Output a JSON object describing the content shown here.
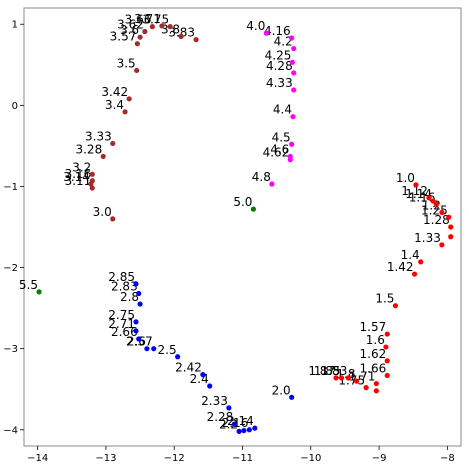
{
  "chart_data": {
    "type": "scatter",
    "title": "",
    "xlabel": "",
    "ylabel": "",
    "xlim": [
      -14.2,
      -7.8
    ],
    "ylim": [
      -4.2,
      1.2
    ],
    "grid": false,
    "legend": "none",
    "x_ticks": [
      -14,
      -13,
      -12,
      -11,
      -10,
      -9,
      -8
    ],
    "y_ticks": [
      1,
      0,
      -1,
      -2,
      -3,
      -4
    ],
    "colors": {
      "red": "#ff0000",
      "blue": "#0000ff",
      "brown": "#a52a2a",
      "magenta": "#ff00ff",
      "green": "#008000"
    },
    "points": [
      {
        "label": "1.0",
        "x": -8.46,
        "y": -0.98,
        "color": "red"
      },
      {
        "label": "1.12",
        "x": -8.27,
        "y": -1.14,
        "color": "red"
      },
      {
        "label": "1.14",
        "x": -8.21,
        "y": -1.18,
        "color": "red"
      },
      {
        "label": "1.16",
        "x": -8.16,
        "y": -1.22,
        "color": "red"
      },
      {
        "label": "1.2",
        "x": -8.08,
        "y": -1.32,
        "color": "red"
      },
      {
        "label": "1.25",
        "x": -7.98,
        "y": -1.38,
        "color": "red"
      },
      {
        "label": "1.28",
        "x": -7.95,
        "y": -1.5,
        "color": "red"
      },
      {
        "label": "1.33",
        "x": -8.08,
        "y": -1.72,
        "color": "red"
      },
      {
        "label": "1.4",
        "x": -8.39,
        "y": -1.93,
        "color": "red"
      },
      {
        "label": "1.42",
        "x": -8.48,
        "y": -2.08,
        "color": "red"
      },
      {
        "label": "1.5",
        "x": -8.76,
        "y": -2.47,
        "color": "red"
      },
      {
        "label": "1.57",
        "x": -8.88,
        "y": -2.82,
        "color": "red"
      },
      {
        "label": "1.6",
        "x": -8.9,
        "y": -2.98,
        "color": "red"
      },
      {
        "label": "1.62",
        "x": -8.88,
        "y": -3.15,
        "color": "red"
      },
      {
        "label": "1.66",
        "x": -8.88,
        "y": -3.33,
        "color": "red"
      },
      {
        "label": "1.71",
        "x": -9.04,
        "y": -3.43,
        "color": "red"
      },
      {
        "label": "1.75",
        "x": -9.19,
        "y": -3.48,
        "color": "red"
      },
      {
        "label": "1.8",
        "x": -9.33,
        "y": -3.4,
        "color": "red"
      },
      {
        "label": "1.83",
        "x": -9.45,
        "y": -3.36,
        "color": "red"
      },
      {
        "label": "1.85",
        "x": -9.55,
        "y": -3.36,
        "color": "red"
      },
      {
        "label": "1.87",
        "x": -9.63,
        "y": -3.36,
        "color": "red"
      },
      {
        "label": "",
        "x": -9.04,
        "y": -3.52,
        "color": "red"
      },
      {
        "label": "",
        "x": -7.95,
        "y": -1.62,
        "color": "red"
      },
      {
        "label": "2.0",
        "x": -10.28,
        "y": -3.6,
        "color": "blue"
      },
      {
        "label": "2.14",
        "x": -10.82,
        "y": -3.98,
        "color": "blue"
      },
      {
        "label": "2.16",
        "x": -10.9,
        "y": -4.0,
        "color": "blue"
      },
      {
        "label": "2.2",
        "x": -11.05,
        "y": -4.02,
        "color": "blue"
      },
      {
        "label": "2.28",
        "x": -11.12,
        "y": -3.93,
        "color": "blue"
      },
      {
        "label": "2.33",
        "x": -11.2,
        "y": -3.73,
        "color": "blue"
      },
      {
        "label": "2.4",
        "x": -11.48,
        "y": -3.46,
        "color": "blue"
      },
      {
        "label": "2.42",
        "x": -11.58,
        "y": -3.32,
        "color": "blue"
      },
      {
        "label": "2.5",
        "x": -11.95,
        "y": -3.1,
        "color": "blue"
      },
      {
        "label": "2.57",
        "x": -12.3,
        "y": -3.0,
        "color": "blue"
      },
      {
        "label": "2.6",
        "x": -12.4,
        "y": -3.0,
        "color": "blue"
      },
      {
        "label": "2.66",
        "x": -12.52,
        "y": -2.88,
        "color": "blue"
      },
      {
        "label": "2.71",
        "x": -12.56,
        "y": -2.78,
        "color": "blue"
      },
      {
        "label": "2.75",
        "x": -12.56,
        "y": -2.67,
        "color": "blue"
      },
      {
        "label": "2.8",
        "x": -12.5,
        "y": -2.45,
        "color": "blue"
      },
      {
        "label": "2.83",
        "x": -12.52,
        "y": -2.32,
        "color": "blue"
      },
      {
        "label": "2.85",
        "x": -12.56,
        "y": -2.2,
        "color": "blue"
      },
      {
        "label": "",
        "x": -10.98,
        "y": -4.01,
        "color": "blue"
      },
      {
        "label": "3.0",
        "x": -12.9,
        "y": -1.4,
        "color": "brown"
      },
      {
        "label": "3.11",
        "x": -13.2,
        "y": -1.02,
        "color": "brown"
      },
      {
        "label": "3.14",
        "x": -13.22,
        "y": -0.97,
        "color": "brown"
      },
      {
        "label": "3.16",
        "x": -13.2,
        "y": -0.93,
        "color": "brown"
      },
      {
        "label": "3.2",
        "x": -13.2,
        "y": -0.85,
        "color": "brown"
      },
      {
        "label": "3.28",
        "x": -13.04,
        "y": -0.63,
        "color": "brown"
      },
      {
        "label": "3.33",
        "x": -12.9,
        "y": -0.47,
        "color": "brown"
      },
      {
        "label": "3.4",
        "x": -12.72,
        "y": -0.08,
        "color": "brown"
      },
      {
        "label": "3.42",
        "x": -12.66,
        "y": 0.08,
        "color": "brown"
      },
      {
        "label": "3.5",
        "x": -12.55,
        "y": 0.43,
        "color": "brown"
      },
      {
        "label": "3.57",
        "x": -12.54,
        "y": 0.76,
        "color": "brown"
      },
      {
        "label": "3.6",
        "x": -12.5,
        "y": 0.84,
        "color": "brown"
      },
      {
        "label": "3.62",
        "x": -12.43,
        "y": 0.91,
        "color": "brown"
      },
      {
        "label": "3.66",
        "x": -12.32,
        "y": 0.97,
        "color": "brown"
      },
      {
        "label": "3.71",
        "x": -12.18,
        "y": 0.98,
        "color": "brown"
      },
      {
        "label": "3.75",
        "x": -12.06,
        "y": 0.97,
        "color": "brown"
      },
      {
        "label": "3.8",
        "x": -11.9,
        "y": 0.85,
        "color": "brown"
      },
      {
        "label": "3.83",
        "x": -11.68,
        "y": 0.81,
        "color": "brown"
      },
      {
        "label": "4.0",
        "x": -10.65,
        "y": 0.89,
        "color": "magenta"
      },
      {
        "label": "4.16",
        "x": -10.28,
        "y": 0.83,
        "color": "magenta"
      },
      {
        "label": "4.2",
        "x": -10.25,
        "y": 0.7,
        "color": "magenta"
      },
      {
        "label": "4.25",
        "x": -10.27,
        "y": 0.53,
        "color": "magenta"
      },
      {
        "label": "4.28",
        "x": -10.25,
        "y": 0.4,
        "color": "magenta"
      },
      {
        "label": "4.33",
        "x": -10.25,
        "y": 0.19,
        "color": "magenta"
      },
      {
        "label": "4.4",
        "x": -10.26,
        "y": -0.14,
        "color": "magenta"
      },
      {
        "label": "4.5",
        "x": -10.28,
        "y": -0.48,
        "color": "magenta"
      },
      {
        "label": "4.6",
        "x": -10.3,
        "y": -0.63,
        "color": "magenta"
      },
      {
        "label": "4.62",
        "x": -10.3,
        "y": -0.67,
        "color": "magenta"
      },
      {
        "label": "4.8",
        "x": -10.57,
        "y": -0.97,
        "color": "magenta"
      },
      {
        "label": "5.0",
        "x": -10.84,
        "y": -1.28,
        "color": "green"
      },
      {
        "label": "5.5",
        "x": -13.98,
        "y": -2.3,
        "color": "green"
      }
    ]
  }
}
